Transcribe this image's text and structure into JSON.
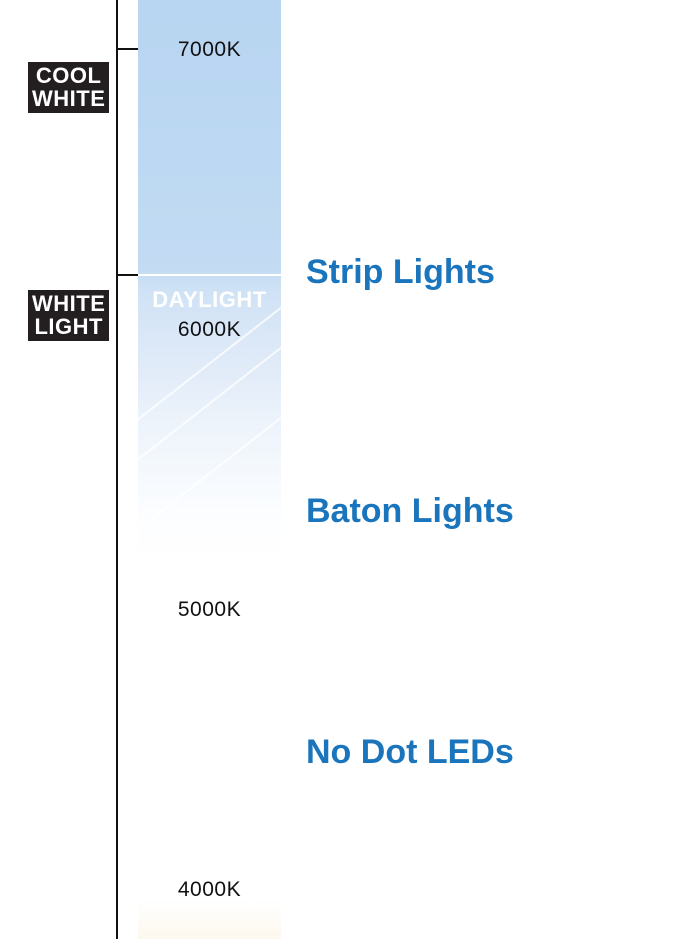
{
  "tags": {
    "cool_white": [
      "COOL",
      "WHITE"
    ],
    "white_light": [
      "WHITE",
      "LIGHT"
    ]
  },
  "band_label": "DAYLIGHT",
  "kelvin_marks": [
    "7000K",
    "6000K",
    "5000K",
    "4000K"
  ],
  "products": [
    "Strip Lights",
    "Baton Lights",
    "No Dot LEDs"
  ],
  "colors": {
    "product_text": "#1b75bc",
    "tag_background": "#231f20",
    "scale_top": "#b8d5f1"
  }
}
